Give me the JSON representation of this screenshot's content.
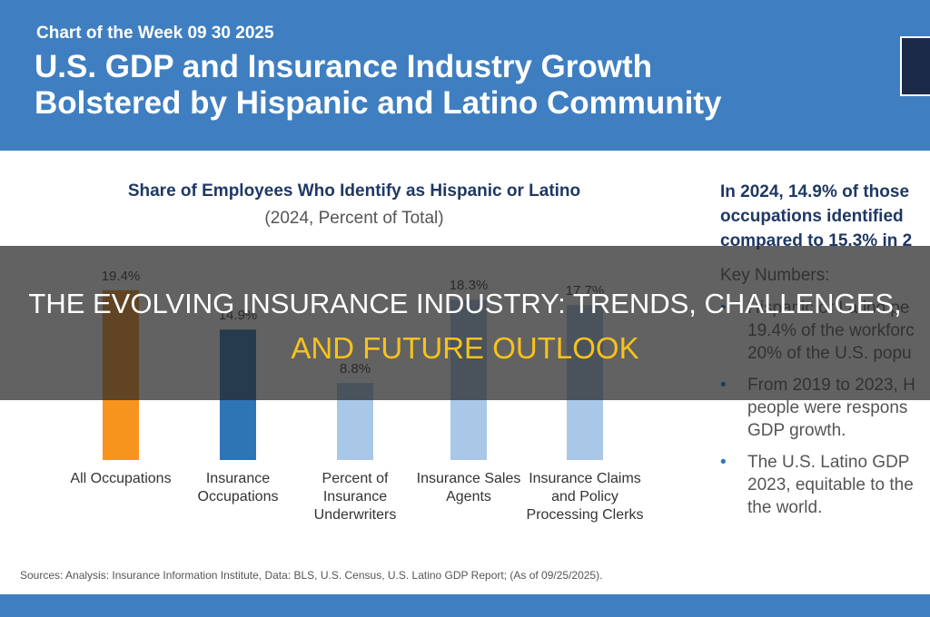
{
  "header": {
    "kicker": "Chart of the Week 09 30 2025",
    "title_lines": [
      "U.S. GDP and Insurance Industry Growth",
      "Bolstered by Hispanic and Latino Community"
    ]
  },
  "chart_data": {
    "type": "bar",
    "title": "Share of Employees Who Identify as Hispanic or Latino",
    "subtitle": "(2024, Percent of Total)",
    "categories": [
      "All Occupations",
      "Insurance Occupations",
      "Percent of Insurance Underwriters",
      "Insurance Sales Agents",
      "Insurance Claims and Policy Processing Clerks"
    ],
    "values": [
      19.4,
      14.9,
      8.8,
      18.3,
      17.7
    ],
    "value_labels": [
      "19.4%",
      "14.9%",
      "8.8%",
      "18.3%",
      "17.7%"
    ],
    "colors": [
      "#f7941d",
      "#2e75b6",
      "#a9c8e8",
      "#a9c8e8",
      "#a9c8e8"
    ],
    "ylim": [
      0,
      20
    ],
    "grid": false
  },
  "panel": {
    "headline_lines": [
      "In 2024, 14.9% of those",
      "occupations identified",
      "compared to 15.3% in 2"
    ],
    "key_numbers": "Key Numbers:",
    "bullet_mark": "•",
    "bullets": [
      [
        "Hispanic or Latino pe",
        "19.4% of the workforc",
        "20% of the U.S. popu"
      ],
      [
        "From 2019 to 2023, H",
        "people were respons",
        "GDP growth."
      ],
      [
        "The U.S. Latino GDP",
        "2023, equitable to the",
        "the world."
      ]
    ]
  },
  "sources": "Sources: Analysis: Insurance Information Institute, Data: BLS, U.S. Census, U.S. Latino GDP Report; (As of 09/25/2025).",
  "overlay": {
    "line1": "THE EVOLVING INSURANCE INDUSTRY: TRENDS, CHALLENGES,",
    "line2": "AND FUTURE OUTLOOK"
  }
}
